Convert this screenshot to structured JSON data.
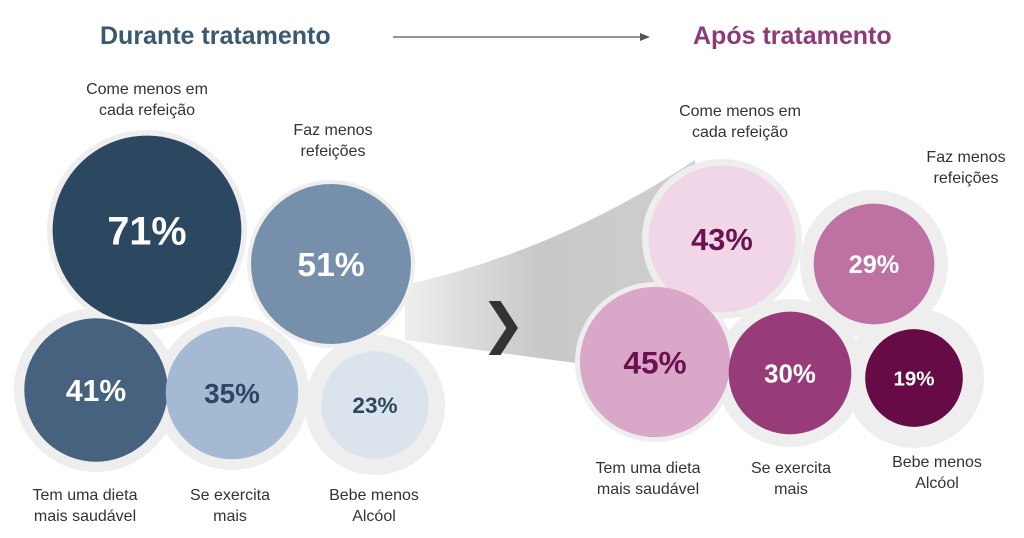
{
  "chart_data": [
    {
      "type": "bubble",
      "title": "Durante tratamento",
      "categories": [
        "Come menos em\ncada refeição",
        "Faz menos\nrefeições",
        "Tem uma dieta\nmais saudável",
        "Se exercita\nmais",
        "Bebe menos\nAlcóol"
      ],
      "values": [
        71,
        51,
        41,
        35,
        23
      ],
      "value_labels": [
        "71%",
        "51%",
        "41%",
        "35%",
        "23%"
      ],
      "colors": [
        "#2c4760",
        "#7690ac",
        "#46627e",
        "#a4b9d2",
        "#dbe3ec"
      ],
      "text_colors": [
        "#ffffff",
        "#ffffff",
        "#ffffff",
        "#2c4760",
        "#2c4760"
      ]
    },
    {
      "type": "bubble",
      "title": "Após tratamento",
      "categories": [
        "Come menos em\ncada refeição",
        "Faz menos\nrefeições",
        "Tem uma dieta\nmais saudável",
        "Se exercita\nmais",
        "Bebe menos\nAlcóol"
      ],
      "values": [
        43,
        29,
        45,
        30,
        19
      ],
      "value_labels": [
        "43%",
        "29%",
        "45%",
        "30%",
        "19%"
      ],
      "colors": [
        "#f0d6e6",
        "#bd72a3",
        "#d9a8c9",
        "#983c79",
        "#660b46"
      ],
      "text_colors": [
        "#6b1050",
        "#ffffff",
        "#6b1050",
        "#ffffff",
        "#ffffff"
      ]
    }
  ],
  "arrow_glyph": "❯"
}
